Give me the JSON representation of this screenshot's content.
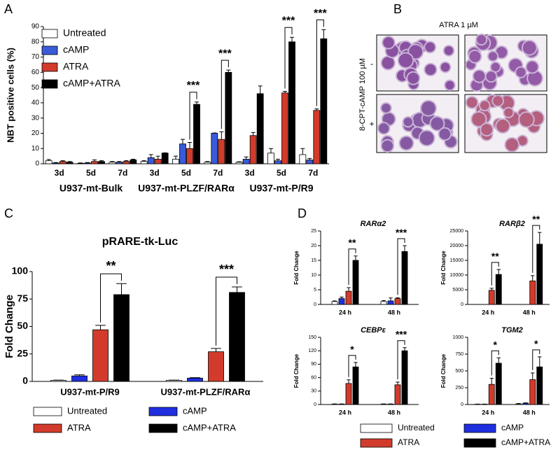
{
  "chart_data": [
    {
      "type": "grouped_bar",
      "panel_label": "A",
      "ylabel": "NBT positive cells (%)",
      "categories": [
        "3d",
        "5d",
        "7d",
        "3d",
        "5d",
        "7d",
        "3d",
        "5d",
        "7d"
      ],
      "group_labels": [
        "U937-mt-Bulk",
        "U937-mt-PLZF/RARα",
        "U937-mt-P/R9"
      ],
      "series": [
        {
          "name": "Untreated",
          "color": "#ffffff",
          "values": [
            2,
            0.3,
            1,
            1.5,
            3,
            1,
            1,
            7,
            6
          ],
          "errors": [
            0.8,
            0.3,
            0.5,
            0.5,
            2,
            0.5,
            0.3,
            3,
            4
          ]
        },
        {
          "name": "cAMP",
          "color": "#3a5bd9",
          "values": [
            0.5,
            0.5,
            1,
            4,
            13,
            20,
            3,
            2,
            2.5
          ],
          "errors": [
            0.3,
            0.3,
            0.5,
            2,
            3,
            0.2,
            1.5,
            1,
            1
          ]
        },
        {
          "name": "ATRA",
          "color": "#d23b2b",
          "values": [
            1.5,
            1.5,
            1.5,
            3,
            10,
            16,
            18.5,
            46.5,
            35
          ],
          "errors": [
            0.5,
            1,
            0.5,
            2,
            4,
            5,
            2,
            1,
            1
          ]
        },
        {
          "name": "cAMP+ATRA",
          "color": "#000000",
          "values": [
            1,
            1.5,
            2.5,
            7,
            39,
            60,
            46,
            80,
            82
          ],
          "errors": [
            0.5,
            0.5,
            0.5,
            0.2,
            1.5,
            1.5,
            5,
            3,
            6
          ]
        }
      ],
      "significance": [
        null,
        null,
        null,
        null,
        "***",
        "***",
        null,
        "***",
        "***"
      ],
      "ylim": [
        0,
        90
      ],
      "yticks": [
        0,
        10,
        20,
        30,
        40,
        50,
        60,
        70,
        80,
        90
      ],
      "legend": "upper left"
    },
    {
      "type": "grouped_bar",
      "panel_label": "C",
      "title": "pRARE-tk-Luc",
      "ylabel": "Fold Change",
      "categories": [
        "U937-mt-P/R9",
        "U937-mt-PLZF/RARα"
      ],
      "series": [
        {
          "name": "Untreated",
          "color": "#ffffff",
          "values": [
            1,
            1
          ],
          "errors": [
            0.2,
            0.2
          ]
        },
        {
          "name": "cAMP",
          "color": "#1f2fe0",
          "values": [
            5,
            3
          ],
          "errors": [
            1,
            0.4
          ]
        },
        {
          "name": "ATRA",
          "color": "#d23b2b",
          "values": [
            47,
            27
          ],
          "errors": [
            4,
            3
          ]
        },
        {
          "name": "cAMP+ATRA",
          "color": "#000000",
          "values": [
            79,
            81
          ],
          "errors": [
            10,
            5
          ]
        }
      ],
      "significance": [
        "**",
        "***"
      ],
      "ylim": [
        0,
        100
      ],
      "yticks": [
        0,
        25,
        50,
        75,
        100
      ],
      "legend": "below"
    },
    {
      "type": "bar_grid",
      "panel_label": "D",
      "ylabel": "Fold Change",
      "categories": [
        "24 h",
        "48 h"
      ],
      "series": [
        {
          "name": "Untreated",
          "color": "#ffffff"
        },
        {
          "name": "cAMP",
          "color": "#1f2fe0"
        },
        {
          "name": "ATRA",
          "color": "#d23b2b"
        },
        {
          "name": "cAMP+ATRA",
          "color": "#000000"
        }
      ],
      "legend": "below",
      "subplots": [
        {
          "title": "RARα2",
          "ylim": [
            0,
            25
          ],
          "yticks": [
            0,
            5,
            10,
            15,
            20,
            25
          ],
          "series": [
            {
              "values": [
                1,
                1
              ],
              "errors": [
                0.2,
                0.3
              ]
            },
            {
              "values": [
                2,
                1.2
              ],
              "errors": [
                0.5,
                1
              ]
            },
            {
              "values": [
                4.5,
                2
              ],
              "errors": [
                1.2,
                0.3
              ]
            },
            {
              "values": [
                15,
                18
              ],
              "errors": [
                1.5,
                2
              ]
            }
          ],
          "significance": [
            "**",
            "***"
          ]
        },
        {
          "title": "RARβ2",
          "ylim": [
            0,
            25000
          ],
          "yticks": [
            0,
            5000,
            10000,
            15000,
            20000,
            25000
          ],
          "series": [
            {
              "values": [
                0,
                0
              ],
              "errors": [
                0,
                0
              ]
            },
            {
              "values": [
                0,
                0
              ],
              "errors": [
                0,
                0
              ]
            },
            {
              "values": [
                4800,
                8000
              ],
              "errors": [
                700,
                1800
              ]
            },
            {
              "values": [
                10200,
                20500
              ],
              "errors": [
                1700,
                4000
              ]
            }
          ],
          "significance": [
            "**",
            "**"
          ]
        },
        {
          "title": "CEBPε",
          "ylim": [
            0,
            150
          ],
          "yticks": [
            0,
            30,
            60,
            90,
            120,
            150
          ],
          "series": [
            {
              "values": [
                1,
                1
              ],
              "errors": [
                0.3,
                0.3
              ]
            },
            {
              "values": [
                1,
                1
              ],
              "errors": [
                0.3,
                0.3
              ]
            },
            {
              "values": [
                47,
                44
              ],
              "errors": [
                8,
                6
              ]
            },
            {
              "values": [
                84,
                120
              ],
              "errors": [
                10,
                7
              ]
            }
          ],
          "significance": [
            "*",
            "***"
          ]
        },
        {
          "title": "TGM2",
          "ylim": [
            0,
            1000
          ],
          "yticks": [
            0,
            250,
            500,
            750,
            1000
          ],
          "series": [
            {
              "values": [
                5,
                10
              ],
              "errors": [
                2,
                5
              ]
            },
            {
              "values": [
                5,
                20
              ],
              "errors": [
                2,
                5
              ]
            },
            {
              "values": [
                300,
                370
              ],
              "errors": [
                90,
                100
              ]
            },
            {
              "values": [
                615,
                560
              ],
              "errors": [
                80,
                150
              ]
            }
          ],
          "significance": [
            "*",
            "*"
          ]
        }
      ]
    }
  ],
  "image_panel": {
    "panel_label": "B",
    "top_label": "ATRA 1 µM",
    "col_labels": [
      "-",
      "+"
    ],
    "side_label": "8-CPT-cAMP 100 µM",
    "row_labels": [
      "-",
      "+"
    ]
  }
}
